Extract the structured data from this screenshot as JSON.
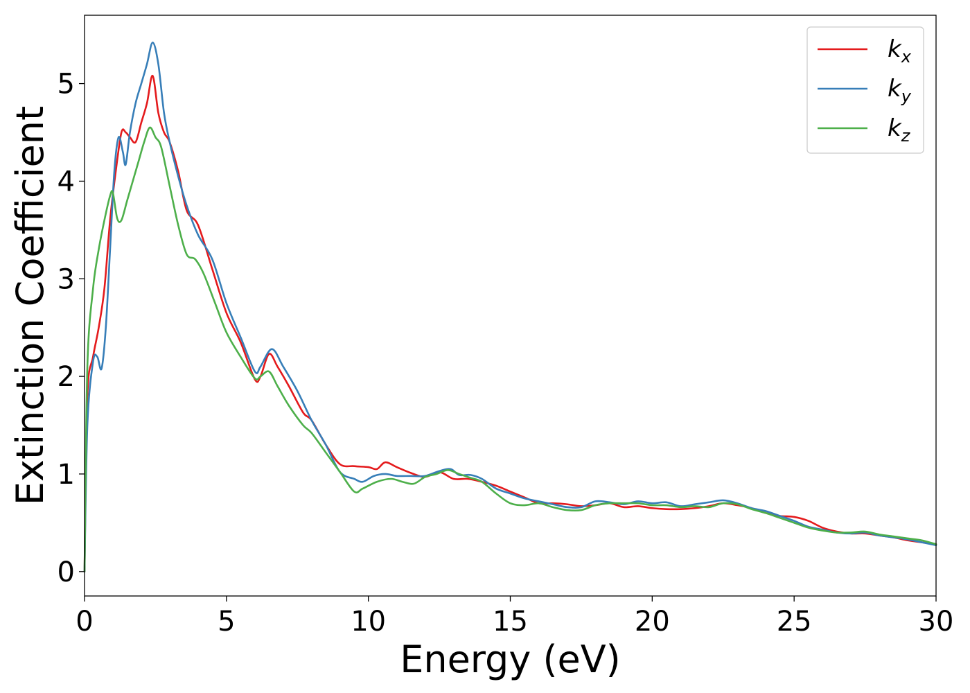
{
  "chart_data": {
    "type": "line",
    "xlabel": "Energy (eV)",
    "ylabel": "Extinction Coefficient",
    "xlim": [
      0,
      30
    ],
    "ylim": [
      -0.25,
      5.7
    ],
    "xticks": [
      0,
      5,
      10,
      15,
      20,
      25,
      30
    ],
    "yticks": [
      0,
      1,
      2,
      3,
      4,
      5
    ],
    "grid": false,
    "legend_position": "top-right",
    "series": [
      {
        "name": "k_x",
        "label_base": "k",
        "label_sub": "x",
        "color": "#e41a1c",
        "x": [
          0,
          0.1,
          0.3,
          0.5,
          0.7,
          0.9,
          1.1,
          1.3,
          1.45,
          1.6,
          1.8,
          2.0,
          2.2,
          2.4,
          2.6,
          2.8,
          3.0,
          3.3,
          3.6,
          4.0,
          4.5,
          5.0,
          5.5,
          6.0,
          6.2,
          6.5,
          6.8,
          7.2,
          7.7,
          8.0,
          8.5,
          9.0,
          9.5,
          10.0,
          10.3,
          10.6,
          11.0,
          11.5,
          12.0,
          12.5,
          13.0,
          13.5,
          14.0,
          14.5,
          15.0,
          15.5,
          16.0,
          16.5,
          17.0,
          17.5,
          18.0,
          18.5,
          19.0,
          19.5,
          20.0,
          20.5,
          21.0,
          21.5,
          22.0,
          22.5,
          23.0,
          23.5,
          24.0,
          24.5,
          25.0,
          25.5,
          26.0,
          26.5,
          27.0,
          27.5,
          28.0,
          28.5,
          29.0,
          29.5,
          30.0
        ],
        "values": [
          0,
          1.8,
          2.2,
          2.5,
          2.9,
          3.6,
          4.1,
          4.5,
          4.5,
          4.45,
          4.4,
          4.6,
          4.8,
          5.08,
          4.7,
          4.5,
          4.4,
          4.1,
          3.7,
          3.55,
          3.1,
          2.65,
          2.35,
          1.97,
          2.0,
          2.23,
          2.1,
          1.9,
          1.63,
          1.55,
          1.3,
          1.1,
          1.08,
          1.07,
          1.05,
          1.12,
          1.07,
          1.01,
          0.97,
          1.02,
          0.95,
          0.95,
          0.92,
          0.88,
          0.82,
          0.76,
          0.7,
          0.7,
          0.69,
          0.67,
          0.68,
          0.7,
          0.66,
          0.67,
          0.65,
          0.64,
          0.64,
          0.65,
          0.67,
          0.7,
          0.68,
          0.65,
          0.6,
          0.57,
          0.56,
          0.52,
          0.45,
          0.41,
          0.39,
          0.39,
          0.37,
          0.35,
          0.32,
          0.3,
          0.28
        ]
      },
      {
        "name": "k_y",
        "label_base": "k",
        "label_sub": "y",
        "color": "#377eb8",
        "x": [
          0,
          0.1,
          0.3,
          0.45,
          0.6,
          0.75,
          0.9,
          1.05,
          1.2,
          1.35,
          1.45,
          1.6,
          1.8,
          2.0,
          2.2,
          2.4,
          2.6,
          2.8,
          3.0,
          3.3,
          3.6,
          4.0,
          4.5,
          5.0,
          5.5,
          6.0,
          6.2,
          6.6,
          7.0,
          7.5,
          8.0,
          8.5,
          9.0,
          9.5,
          9.8,
          10.2,
          10.6,
          11.0,
          11.5,
          12.0,
          12.5,
          12.9,
          13.2,
          13.6,
          14.0,
          14.5,
          15.0,
          15.5,
          16.0,
          16.5,
          17.0,
          17.5,
          18.0,
          18.5,
          19.0,
          19.5,
          20.0,
          20.5,
          21.0,
          21.5,
          22.0,
          22.5,
          23.0,
          23.5,
          24.0,
          24.5,
          25.0,
          25.5,
          26.0,
          26.5,
          27.0,
          27.5,
          28.0,
          28.5,
          29.0,
          29.5,
          30.0
        ],
        "values": [
          0,
          1.5,
          2.15,
          2.2,
          2.08,
          2.5,
          3.3,
          4.1,
          4.45,
          4.3,
          4.17,
          4.5,
          4.8,
          5.0,
          5.2,
          5.42,
          5.2,
          4.7,
          4.4,
          4.05,
          3.75,
          3.45,
          3.2,
          2.75,
          2.4,
          2.05,
          2.1,
          2.28,
          2.1,
          1.85,
          1.55,
          1.3,
          1.02,
          0.95,
          0.92,
          0.98,
          1.0,
          0.98,
          0.98,
          0.98,
          1.03,
          1.05,
          0.99,
          0.99,
          0.95,
          0.85,
          0.8,
          0.75,
          0.72,
          0.69,
          0.66,
          0.66,
          0.72,
          0.71,
          0.69,
          0.72,
          0.7,
          0.71,
          0.67,
          0.69,
          0.71,
          0.73,
          0.7,
          0.65,
          0.62,
          0.57,
          0.52,
          0.46,
          0.43,
          0.4,
          0.39,
          0.4,
          0.37,
          0.35,
          0.33,
          0.3,
          0.27
        ]
      },
      {
        "name": "k_z",
        "label_base": "k",
        "label_sub": "z",
        "color": "#4daf4a",
        "x": [
          0,
          0.1,
          0.3,
          0.5,
          0.7,
          0.9,
          1.0,
          1.15,
          1.3,
          1.5,
          1.7,
          1.9,
          2.1,
          2.3,
          2.5,
          2.7,
          3.0,
          3.3,
          3.6,
          3.9,
          4.2,
          4.6,
          5.0,
          5.5,
          6.0,
          6.2,
          6.5,
          6.8,
          7.2,
          7.7,
          8.0,
          8.5,
          9.0,
          9.5,
          9.8,
          10.3,
          10.8,
          11.2,
          11.6,
          12.0,
          12.4,
          12.8,
          13.2,
          13.6,
          14.0,
          14.5,
          15.0,
          15.5,
          16.0,
          16.5,
          17.0,
          17.5,
          18.0,
          18.5,
          19.0,
          19.5,
          20.0,
          20.5,
          21.0,
          21.5,
          22.0,
          22.5,
          23.0,
          23.5,
          24.0,
          24.5,
          25.0,
          25.5,
          26.0,
          26.5,
          27.0,
          27.5,
          28.0,
          28.5,
          29.0,
          29.5,
          30.0
        ],
        "values": [
          0,
          2.1,
          2.9,
          3.3,
          3.6,
          3.85,
          3.88,
          3.62,
          3.6,
          3.8,
          4.0,
          4.2,
          4.4,
          4.55,
          4.45,
          4.35,
          3.95,
          3.55,
          3.25,
          3.2,
          3.05,
          2.75,
          2.45,
          2.2,
          1.98,
          2.0,
          2.05,
          1.9,
          1.7,
          1.5,
          1.42,
          1.22,
          1.02,
          0.82,
          0.85,
          0.92,
          0.95,
          0.92,
          0.9,
          0.97,
          1.0,
          1.04,
          1.0,
          0.96,
          0.92,
          0.8,
          0.7,
          0.68,
          0.7,
          0.66,
          0.63,
          0.63,
          0.68,
          0.7,
          0.7,
          0.7,
          0.68,
          0.68,
          0.66,
          0.67,
          0.66,
          0.7,
          0.69,
          0.64,
          0.6,
          0.55,
          0.5,
          0.45,
          0.42,
          0.4,
          0.4,
          0.41,
          0.38,
          0.36,
          0.34,
          0.32,
          0.28
        ]
      }
    ]
  }
}
